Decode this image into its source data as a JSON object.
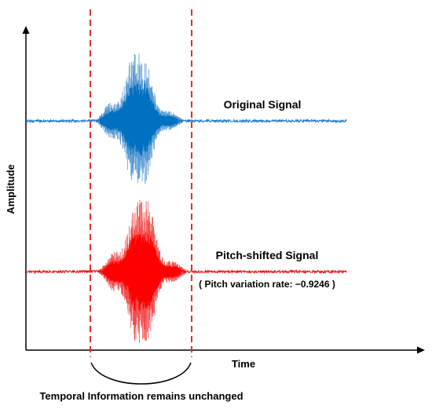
{
  "axes": {
    "x_label": "Time",
    "y_label": "Amplitude"
  },
  "signals": [
    {
      "label": "Original Signal",
      "color": "#1f77c4",
      "burst_color": "#0070c0"
    },
    {
      "label": "Pitch-shifted Signal",
      "color": "#ee1111",
      "burst_color": "#ff0000"
    }
  ],
  "pitch_variation_text": "( Pitch variation rate: −0.9246 )",
  "window": {
    "color": "#e03030"
  },
  "brace_label": "Temporal Information remains unchanged"
}
